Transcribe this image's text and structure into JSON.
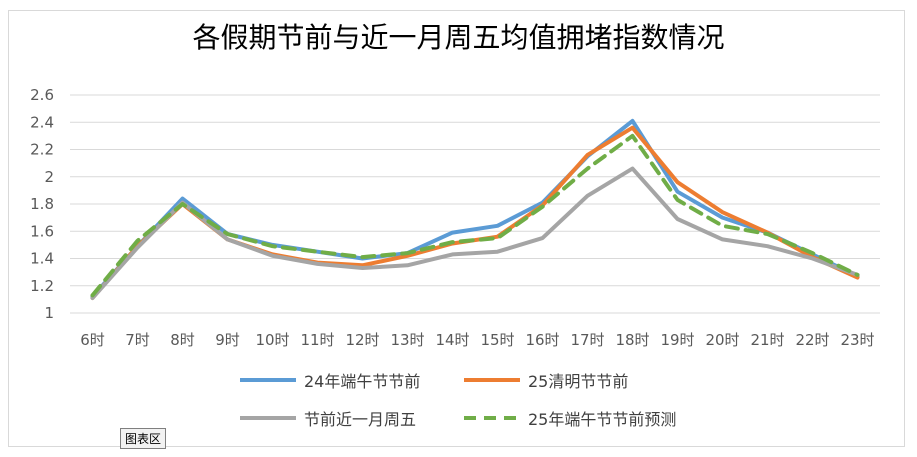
{
  "chart_data": {
    "type": "line",
    "title": "各假期节前与近一月周五均值拥堵指数情况",
    "xlabel": "",
    "ylabel": "",
    "ylim": [
      1,
      2.6
    ],
    "yticks": [
      "1",
      "1.2",
      "1.4",
      "1.6",
      "1.8",
      "2",
      "2.2",
      "2.4",
      "2.6"
    ],
    "grid": "horizontal",
    "legend_position": "bottom",
    "categories": [
      "6时",
      "7时",
      "8时",
      "9时",
      "10时",
      "11时",
      "12时",
      "13时",
      "14时",
      "15时",
      "16时",
      "17时",
      "18时",
      "19时",
      "20时",
      "21时",
      "22时",
      "23时"
    ],
    "series": [
      {
        "name": "24年端午节节前",
        "color": "#5b9bd5",
        "dash": false,
        "values": [
          1.12,
          1.49,
          1.84,
          1.58,
          1.5,
          1.45,
          1.4,
          1.44,
          1.59,
          1.64,
          1.81,
          2.15,
          2.41,
          1.89,
          1.7,
          1.59,
          1.43,
          1.27
        ]
      },
      {
        "name": "25清明节节前",
        "color": "#ed7d31",
        "dash": false,
        "values": [
          1.11,
          1.49,
          1.8,
          1.54,
          1.43,
          1.37,
          1.35,
          1.42,
          1.51,
          1.56,
          1.79,
          2.16,
          2.36,
          1.96,
          1.74,
          1.59,
          1.41,
          1.26
        ]
      },
      {
        "name": "节前近一月周五",
        "color": "#a5a5a5",
        "dash": false,
        "values": [
          1.11,
          1.48,
          1.81,
          1.54,
          1.42,
          1.36,
          1.33,
          1.35,
          1.43,
          1.45,
          1.55,
          1.86,
          2.06,
          1.69,
          1.54,
          1.49,
          1.4,
          1.28
        ]
      },
      {
        "name": "25年端午节节前预测",
        "color": "#70ad47",
        "dash": true,
        "values": [
          1.13,
          1.53,
          1.8,
          1.58,
          1.49,
          1.45,
          1.41,
          1.44,
          1.52,
          1.55,
          1.78,
          2.06,
          2.3,
          1.83,
          1.64,
          1.58,
          1.44,
          1.28
        ]
      }
    ]
  },
  "chart_area_label": "图表区"
}
